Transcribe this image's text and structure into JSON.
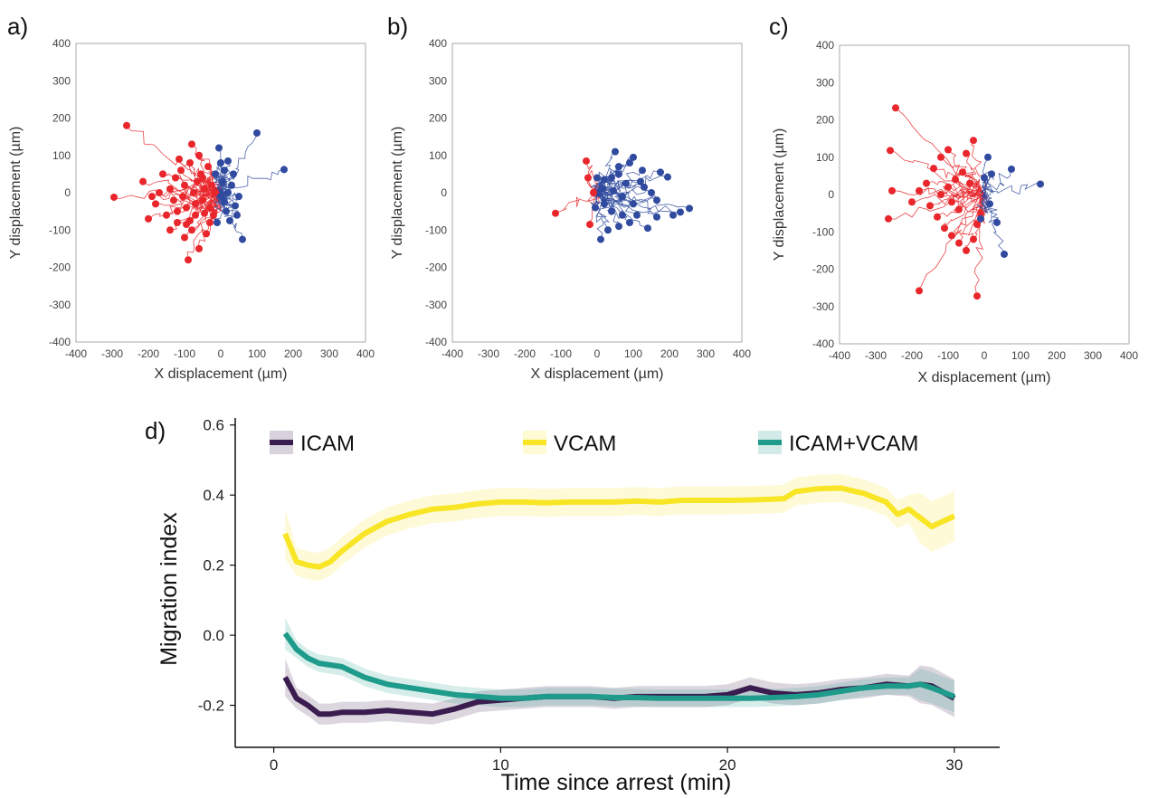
{
  "figure": {
    "panels": [
      {
        "label": "a)",
        "xlabel": "X displacement (µm)",
        "ylabel": "Y displacement (µm)"
      },
      {
        "label": "b)",
        "xlabel": "X displacement (µm)",
        "ylabel": "Y displacement (µm)"
      },
      {
        "label": "c)",
        "xlabel": "X displacement (µm)",
        "ylabel": "Y displacement (µm)"
      }
    ],
    "panel_d_label": "d)"
  },
  "colors": {
    "red_tracks": "#e8262b",
    "blue_tracks": "#2f4a9e",
    "icam": "#3b1c4f",
    "vcam": "#f8e525",
    "icam_vcam": "#1e9b8a"
  },
  "chart_data": [
    {
      "type": "scatter",
      "panel": "a",
      "xlim": [
        -400,
        400
      ],
      "ylim": [
        -400,
        400
      ],
      "xticks": [
        -400,
        -300,
        -200,
        -100,
        0,
        100,
        200,
        300,
        400
      ],
      "yticks": [
        -400,
        -300,
        -200,
        -100,
        0,
        100,
        200,
        300,
        400
      ],
      "xlabel": "X displacement (µm)",
      "ylabel": "Y displacement (µm)",
      "series": [
        {
          "color": "red",
          "endpoints": [
            [
              -260,
              180
            ],
            [
              -295,
              -12
            ],
            [
              -215,
              30
            ],
            [
              -200,
              -70
            ],
            [
              -180,
              -30
            ],
            [
              -160,
              50
            ],
            [
              -150,
              -60
            ],
            [
              -140,
              10
            ],
            [
              -130,
              -20
            ],
            [
              -125,
              40
            ],
            [
              -120,
              -80
            ],
            [
              -110,
              60
            ],
            [
              -105,
              -10
            ],
            [
              -100,
              20
            ],
            [
              -95,
              -40
            ],
            [
              -90,
              -180
            ],
            [
              -85,
              80
            ],
            [
              -80,
              -100
            ],
            [
              -75,
              0
            ],
            [
              -70,
              -60
            ],
            [
              -65,
              30
            ],
            [
              -60,
              -150
            ],
            [
              -55,
              50
            ],
            [
              -50,
              -20
            ],
            [
              -45,
              10
            ],
            [
              -40,
              -110
            ],
            [
              -35,
              70
            ],
            [
              -30,
              -40
            ],
            [
              -25,
              20
            ],
            [
              -20,
              -60
            ],
            [
              -15,
              0
            ],
            [
              -80,
              130
            ],
            [
              -60,
              100
            ],
            [
              -120,
              -50
            ],
            [
              -140,
              -100
            ],
            [
              -100,
              -120
            ],
            [
              -170,
              0
            ],
            [
              -190,
              -10
            ],
            [
              -70,
              -30
            ],
            [
              -50,
              40
            ],
            [
              -30,
              -80
            ],
            [
              -45,
              -55
            ],
            [
              -85,
              -75
            ],
            [
              -115,
              90
            ],
            [
              -95,
              -85
            ]
          ]
        },
        {
          "color": "blue",
          "endpoints": [
            [
              100,
              160
            ],
            [
              175,
              62
            ],
            [
              60,
              -125
            ],
            [
              40,
              -35
            ],
            [
              20,
              85
            ],
            [
              10,
              60
            ],
            [
              30,
              20
            ],
            [
              50,
              -10
            ],
            [
              0,
              -10
            ],
            [
              -10,
              -80
            ],
            [
              15,
              -50
            ],
            [
              25,
              -75
            ],
            [
              5,
              30
            ],
            [
              -5,
              120
            ],
            [
              10,
              -25
            ],
            [
              35,
              50
            ],
            [
              45,
              -60
            ],
            [
              0,
              80
            ],
            [
              20,
              0
            ],
            [
              -15,
              50
            ]
          ]
        }
      ]
    },
    {
      "type": "scatter",
      "panel": "b",
      "xlim": [
        -400,
        400
      ],
      "ylim": [
        -400,
        400
      ],
      "xticks": [
        -400,
        -300,
        -200,
        -100,
        0,
        100,
        200,
        300,
        400
      ],
      "yticks": [
        -400,
        -300,
        -200,
        -100,
        0,
        100,
        200,
        300,
        400
      ],
      "xlabel": "X displacement (µm)",
      "ylabel": "Y displacement (µm)",
      "series": [
        {
          "color": "red",
          "endpoints": [
            [
              -115,
              -55
            ],
            [
              -30,
              85
            ],
            [
              -20,
              -85
            ],
            [
              -10,
              0
            ],
            [
              -25,
              40
            ]
          ]
        },
        {
          "color": "blue",
          "endpoints": [
            [
              50,
              110
            ],
            [
              100,
              95
            ],
            [
              90,
              80
            ],
            [
              175,
              55
            ],
            [
              195,
              42
            ],
            [
              255,
              -42
            ],
            [
              230,
              -52
            ],
            [
              165,
              -20
            ],
            [
              150,
              0
            ],
            [
              120,
              30
            ],
            [
              80,
              25
            ],
            [
              60,
              50
            ],
            [
              40,
              40
            ],
            [
              20,
              35
            ],
            [
              0,
              40
            ],
            [
              10,
              -125
            ],
            [
              30,
              -100
            ],
            [
              60,
              -90
            ],
            [
              90,
              -80
            ],
            [
              140,
              -95
            ],
            [
              110,
              -60
            ],
            [
              70,
              -60
            ],
            [
              40,
              -50
            ],
            [
              20,
              -30
            ],
            [
              -5,
              -40
            ],
            [
              130,
              15
            ],
            [
              100,
              -30
            ],
            [
              70,
              -10
            ],
            [
              45,
              5
            ],
            [
              15,
              10
            ],
            [
              165,
              -65
            ],
            [
              210,
              -60
            ],
            [
              125,
              60
            ],
            [
              60,
              70
            ]
          ]
        }
      ]
    },
    {
      "type": "scatter",
      "panel": "c",
      "xlim": [
        -400,
        400
      ],
      "ylim": [
        -400,
        400
      ],
      "xticks": [
        -400,
        -300,
        -200,
        -100,
        0,
        100,
        200,
        300,
        400
      ],
      "yticks": [
        -400,
        -300,
        -200,
        -100,
        0,
        100,
        200,
        300,
        400
      ],
      "xlabel": "X displacement (µm)",
      "ylabel": "Y displacement (µm)",
      "series": [
        {
          "color": "red",
          "endpoints": [
            [
              -245,
              232
            ],
            [
              -260,
              118
            ],
            [
              -265,
              -65
            ],
            [
              -255,
              10
            ],
            [
              -180,
              -258
            ],
            [
              -20,
              -272
            ],
            [
              -100,
              120
            ],
            [
              -120,
              100
            ],
            [
              -140,
              70
            ],
            [
              -160,
              30
            ],
            [
              -180,
              10
            ],
            [
              -200,
              -20
            ],
            [
              -150,
              -30
            ],
            [
              -130,
              -60
            ],
            [
              -110,
              -90
            ],
            [
              -90,
              -110
            ],
            [
              -70,
              -130
            ],
            [
              -50,
              -150
            ],
            [
              -30,
              -120
            ],
            [
              -20,
              -80
            ],
            [
              -10,
              -50
            ],
            [
              -60,
              60
            ],
            [
              -80,
              40
            ],
            [
              -100,
              20
            ],
            [
              -120,
              0
            ],
            [
              -50,
              110
            ],
            [
              -30,
              145
            ],
            [
              -70,
              -40
            ],
            [
              -90,
              -20
            ],
            [
              -40,
              30
            ]
          ]
        },
        {
          "color": "blue",
          "endpoints": [
            [
              155,
              28
            ],
            [
              75,
              68
            ],
            [
              55,
              -160
            ],
            [
              35,
              -75
            ],
            [
              20,
              55
            ],
            [
              10,
              100
            ],
            [
              0,
              45
            ],
            [
              -10,
              -65
            ],
            [
              15,
              -25
            ]
          ]
        }
      ]
    },
    {
      "type": "line",
      "panel": "d",
      "title": "",
      "xlabel": "Time since arrest (min)",
      "ylabel": "Migration index",
      "xlim": [
        -1.7,
        32
      ],
      "ylim": [
        -0.32,
        0.62
      ],
      "xticks": [
        0,
        10,
        20,
        30
      ],
      "yticks": [
        -0.2,
        0.0,
        0.2,
        0.4,
        0.6
      ],
      "ytick_labels": [
        "-0.2",
        "0.0",
        "0.2",
        "0.4",
        "0.6"
      ],
      "legend_placement": "top",
      "series": [
        {
          "name": "ICAM",
          "color": "#3b1c4f",
          "x": [
            0.5,
            1,
            1.5,
            2,
            2.5,
            3,
            4,
            5,
            6,
            7,
            8,
            9,
            10,
            11,
            12,
            13,
            14,
            15,
            16,
            17,
            18,
            19,
            20,
            21,
            22,
            23,
            24,
            25,
            26,
            27,
            28,
            28.5,
            29,
            30
          ],
          "y": [
            -0.12,
            -0.18,
            -0.2,
            -0.225,
            -0.225,
            -0.22,
            -0.22,
            -0.215,
            -0.22,
            -0.225,
            -0.21,
            -0.19,
            -0.185,
            -0.18,
            -0.175,
            -0.175,
            -0.175,
            -0.18,
            -0.175,
            -0.175,
            -0.175,
            -0.175,
            -0.17,
            -0.15,
            -0.165,
            -0.17,
            -0.165,
            -0.155,
            -0.15,
            -0.14,
            -0.145,
            -0.14,
            -0.145,
            -0.18
          ],
          "band": 0.03
        },
        {
          "name": "VCAM",
          "color": "#f8e525",
          "x": [
            0.5,
            1,
            1.5,
            2,
            2.5,
            3,
            4,
            5,
            6,
            7,
            8,
            9,
            10,
            11,
            12,
            13,
            14,
            15,
            16,
            17,
            18,
            19,
            20,
            21,
            22,
            22.5,
            23,
            24,
            25,
            26,
            27,
            27.5,
            28,
            28.5,
            29,
            30
          ],
          "y": [
            0.29,
            0.21,
            0.2,
            0.195,
            0.21,
            0.24,
            0.29,
            0.325,
            0.345,
            0.36,
            0.365,
            0.375,
            0.38,
            0.38,
            0.378,
            0.38,
            0.38,
            0.38,
            0.383,
            0.38,
            0.385,
            0.385,
            0.385,
            0.386,
            0.388,
            0.39,
            0.41,
            0.418,
            0.42,
            0.405,
            0.38,
            0.345,
            0.36,
            0.335,
            0.31,
            0.34
          ],
          "band": 0.04
        },
        {
          "name": "ICAM+VCAM",
          "color": "#1e9b8a",
          "x": [
            0.5,
            1,
            1.5,
            2,
            2.5,
            3,
            4,
            5,
            6,
            7,
            8,
            9,
            10,
            11,
            12,
            13,
            14,
            15,
            16,
            17,
            18,
            19,
            20,
            21,
            22,
            23,
            24,
            25,
            26,
            27,
            28,
            28.5,
            29,
            30
          ],
          "y": [
            0.005,
            -0.04,
            -0.065,
            -0.08,
            -0.085,
            -0.09,
            -0.12,
            -0.14,
            -0.15,
            -0.16,
            -0.17,
            -0.175,
            -0.18,
            -0.18,
            -0.175,
            -0.175,
            -0.175,
            -0.178,
            -0.178,
            -0.18,
            -0.18,
            -0.18,
            -0.18,
            -0.18,
            -0.178,
            -0.175,
            -0.17,
            -0.16,
            -0.15,
            -0.145,
            -0.145,
            -0.14,
            -0.15,
            -0.175
          ],
          "band": 0.025
        }
      ]
    }
  ]
}
